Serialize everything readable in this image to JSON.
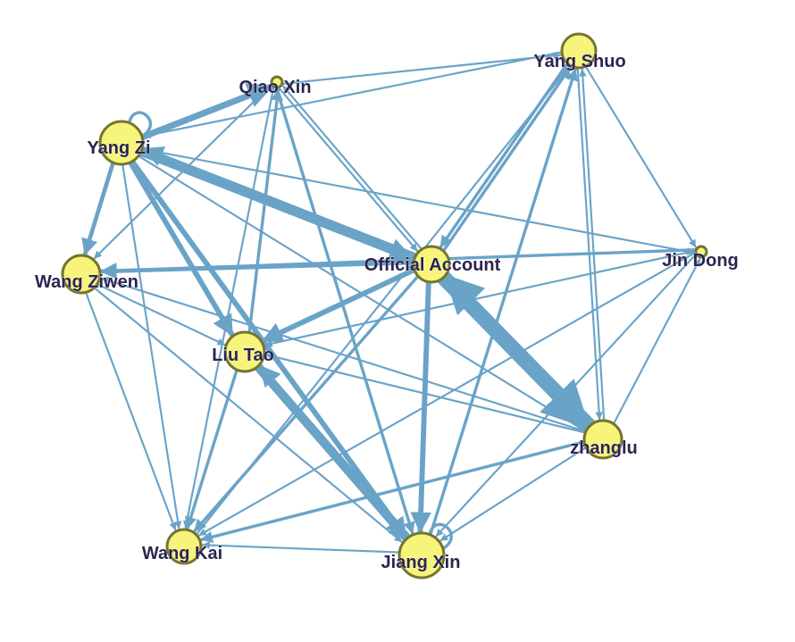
{
  "graph": {
    "node_fill": "#f6f47a",
    "node_stroke": "#76742e",
    "edge_color": "#6aa3c8",
    "label_color": "#2b2450",
    "nodes": [
      {
        "id": "official",
        "label": "Official Account"
      },
      {
        "id": "yangzi",
        "label": "Yang Zi"
      },
      {
        "id": "qiaoxin",
        "label": "Qiao Xin"
      },
      {
        "id": "yangshuo",
        "label": "Yang Shuo"
      },
      {
        "id": "wangziwen",
        "label": "Wang Ziwen"
      },
      {
        "id": "jindong",
        "label": "Jin Dong"
      },
      {
        "id": "liutao",
        "label": "Liu Tao"
      },
      {
        "id": "zhanglu",
        "label": "zhanglu"
      },
      {
        "id": "wangkai",
        "label": "Wang Kai"
      },
      {
        "id": "jiangxin",
        "label": "Jiang Xin"
      }
    ],
    "edges": [
      {
        "from": "official",
        "to": "zhanglu",
        "weight": 10
      },
      {
        "from": "zhanglu",
        "to": "official",
        "weight": 8
      },
      {
        "from": "yangzi",
        "to": "official",
        "weight": 5
      },
      {
        "from": "official",
        "to": "yangzi",
        "weight": 4
      },
      {
        "from": "official",
        "to": "jiangxin",
        "weight": 4
      },
      {
        "from": "official",
        "to": "liutao",
        "weight": 4
      },
      {
        "from": "official",
        "to": "wangziwen",
        "weight": 3
      },
      {
        "from": "official",
        "to": "yangshuo",
        "weight": 2
      },
      {
        "from": "yangshuo",
        "to": "official",
        "weight": 2
      },
      {
        "from": "official",
        "to": "wangkai",
        "weight": 2
      },
      {
        "from": "official",
        "to": "qiaoxin",
        "weight": 1
      },
      {
        "from": "yangzi",
        "to": "qiaoxin",
        "weight": 5
      },
      {
        "from": "yangzi",
        "to": "wangziwen",
        "weight": 3
      },
      {
        "from": "yangzi",
        "to": "liutao",
        "weight": 4
      },
      {
        "from": "yangzi",
        "to": "jiangxin",
        "weight": 4
      },
      {
        "from": "jiangxin",
        "to": "liutao",
        "weight": 4
      },
      {
        "from": "liutao",
        "to": "jiangxin",
        "weight": 3
      },
      {
        "from": "yangzi",
        "to": "jindong",
        "weight": 1
      },
      {
        "from": "yangzi",
        "to": "zhanglu",
        "weight": 1
      },
      {
        "from": "yangzi",
        "to": "wangkai",
        "weight": 1
      },
      {
        "from": "qiaoxin",
        "to": "yangshuo",
        "weight": 1
      },
      {
        "from": "qiaoxin",
        "to": "jiangxin",
        "weight": 2
      },
      {
        "from": "qiaoxin",
        "to": "wangziwen",
        "weight": 1
      },
      {
        "from": "qiaoxin",
        "to": "wangkai",
        "weight": 1
      },
      {
        "from": "qiaoxin",
        "to": "official",
        "weight": 1
      },
      {
        "from": "liutao",
        "to": "qiaoxin",
        "weight": 2
      },
      {
        "from": "yangshuo",
        "to": "yangzi",
        "weight": 1
      },
      {
        "from": "yangshuo",
        "to": "jindong",
        "weight": 1
      },
      {
        "from": "yangshuo",
        "to": "zhanglu",
        "weight": 1
      },
      {
        "from": "jiangxin",
        "to": "yangshuo",
        "weight": 2
      },
      {
        "from": "wangkai",
        "to": "yangshuo",
        "weight": 1
      },
      {
        "from": "jindong",
        "to": "wangziwen",
        "weight": 2
      },
      {
        "from": "jindong",
        "to": "liutao",
        "weight": 1
      },
      {
        "from": "jindong",
        "to": "wangkai",
        "weight": 1
      },
      {
        "from": "jindong",
        "to": "jiangxin",
        "weight": 1
      },
      {
        "from": "zhanglu",
        "to": "wangkai",
        "weight": 2
      },
      {
        "from": "zhanglu",
        "to": "liutao",
        "weight": 1
      },
      {
        "from": "zhanglu",
        "to": "jiangxin",
        "weight": 1
      },
      {
        "from": "zhanglu",
        "to": "yangshuo",
        "weight": 1
      },
      {
        "from": "zhanglu",
        "to": "wangziwen",
        "weight": 1
      },
      {
        "from": "zhanglu",
        "to": "jindong",
        "weight": 1
      },
      {
        "from": "wangziwen",
        "to": "wangkai",
        "weight": 1
      },
      {
        "from": "wangziwen",
        "to": "liutao",
        "weight": 1
      },
      {
        "from": "wangziwen",
        "to": "jiangxin",
        "weight": 1
      },
      {
        "from": "liutao",
        "to": "wangkai",
        "weight": 2
      },
      {
        "from": "jiangxin",
        "to": "wangkai",
        "weight": 1
      },
      {
        "from": "yangzi",
        "to": "yangzi",
        "weight": 2
      },
      {
        "from": "jiangxin",
        "to": "jiangxin",
        "weight": 2
      }
    ]
  }
}
